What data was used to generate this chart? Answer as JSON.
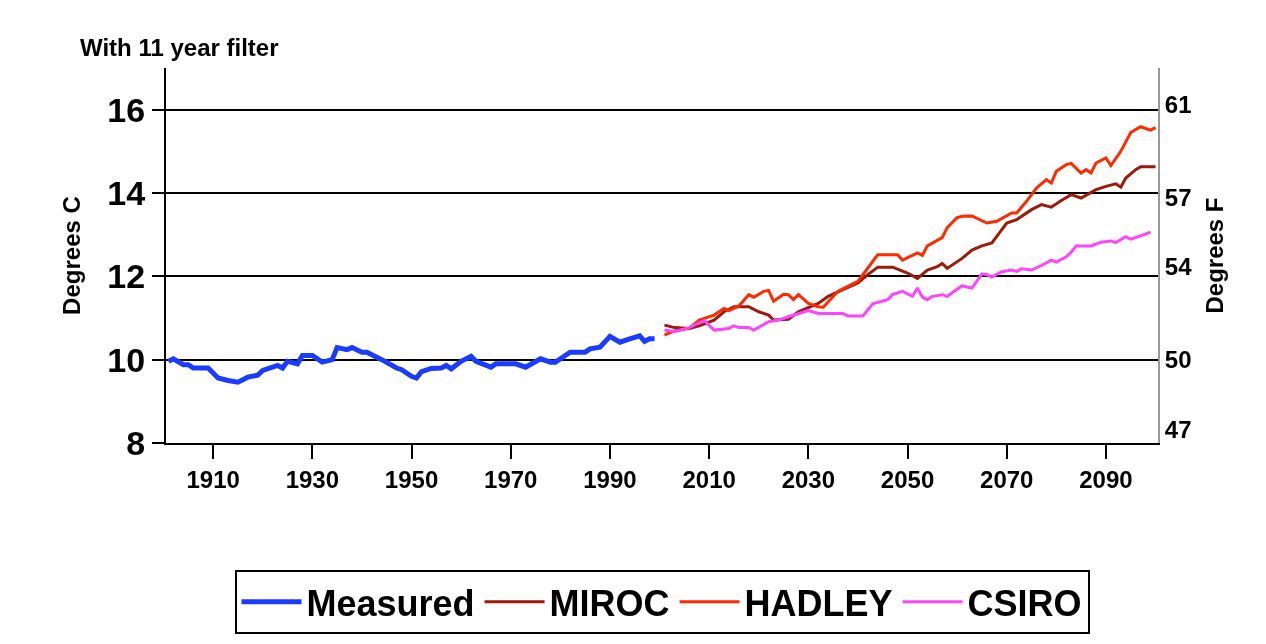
{
  "chart_data": {
    "type": "line",
    "title": "With 11 year filter",
    "ylabel": "Degrees C",
    "y2label": "Degrees F",
    "xlim": [
      1900.5,
      2100.5
    ],
    "xticks": [
      1910,
      1930,
      1950,
      1970,
      1990,
      2010,
      2030,
      2050,
      2070,
      2090
    ],
    "ylim": [
      8,
      17
    ],
    "yticks": [
      8,
      10,
      12,
      14,
      16
    ],
    "y2lim": [
      46.4,
      62.6
    ],
    "y2ticks": [
      47,
      50,
      54,
      57,
      61
    ],
    "grid": "y",
    "legend": "bottom",
    "marker": "none",
    "line_style": "solid",
    "series": [
      {
        "name": "Measured",
        "color": "#1a3cff",
        "x": [
          1901,
          1902,
          1904,
          1905,
          1906,
          1909,
          1911,
          1913,
          1915,
          1917,
          1919,
          1920,
          1923,
          1924,
          1925,
          1927,
          1928,
          1930,
          1932,
          1934,
          1935,
          1937,
          1938,
          1940,
          1941,
          1944,
          1947,
          1948,
          1950,
          1951,
          1952,
          1954,
          1956,
          1957,
          1958,
          1960,
          1962,
          1963,
          1966,
          1967,
          1971,
          1973,
          1976,
          1978,
          1979,
          1981,
          1982,
          1985,
          1986,
          1988,
          1990,
          1992,
          1994,
          1996,
          1997,
          1998,
          1999
        ],
        "values": [
          9.96,
          10.02,
          9.88,
          9.88,
          9.8,
          9.8,
          9.56,
          9.5,
          9.46,
          9.58,
          9.63,
          9.74,
          9.86,
          9.8,
          9.96,
          9.9,
          10.1,
          10.1,
          9.94,
          10.0,
          10.29,
          10.24,
          10.29,
          10.18,
          10.18,
          10.0,
          9.8,
          9.76,
          9.6,
          9.56,
          9.71,
          9.79,
          9.8,
          9.86,
          9.78,
          9.96,
          10.08,
          9.96,
          9.82,
          9.9,
          9.9,
          9.82,
          10.02,
          9.94,
          9.94,
          10.1,
          10.18,
          10.18,
          10.26,
          10.3,
          10.56,
          10.42,
          10.5,
          10.57,
          10.44,
          10.5,
          10.5
        ]
      },
      {
        "name": "MIROC",
        "color": "#9b1a0a",
        "x": [
          2001,
          2003,
          2006,
          2008,
          2011,
          2013,
          2015,
          2018,
          2020,
          2022,
          2023,
          2026,
          2028,
          2032,
          2034,
          2037,
          2040,
          2042,
          2044,
          2047,
          2050,
          2052,
          2054,
          2056,
          2057,
          2058,
          2061,
          2063,
          2065,
          2067,
          2068,
          2070,
          2072,
          2075,
          2077,
          2079,
          2081,
          2083,
          2085,
          2088,
          2090,
          2092,
          2093,
          2094,
          2096,
          2097,
          2100
        ],
        "values": [
          10.83,
          10.77,
          10.75,
          10.81,
          10.95,
          11.15,
          11.27,
          11.27,
          11.15,
          11.07,
          10.95,
          10.97,
          11.15,
          11.35,
          11.52,
          11.68,
          11.84,
          12.04,
          12.22,
          12.22,
          12.08,
          11.95,
          12.15,
          12.23,
          12.31,
          12.19,
          12.43,
          12.63,
          12.73,
          12.8,
          12.96,
          13.28,
          13.36,
          13.6,
          13.72,
          13.66,
          13.82,
          13.96,
          13.88,
          14.08,
          14.16,
          14.22,
          14.14,
          14.36,
          14.56,
          14.63,
          14.63
        ]
      },
      {
        "name": "HADLEY",
        "color": "#ff2a00",
        "x": [
          2001,
          2003,
          2006,
          2008,
          2011,
          2013,
          2014,
          2016,
          2018,
          2019,
          2021,
          2022,
          2023,
          2025,
          2026,
          2027,
          2028,
          2030,
          2032,
          2033,
          2036,
          2040,
          2042,
          2044,
          2046,
          2048,
          2049,
          2052,
          2053,
          2054,
          2057,
          2058,
          2060,
          2061,
          2063,
          2066,
          2068,
          2071,
          2072,
          2074,
          2076,
          2078,
          2079,
          2080,
          2082,
          2083,
          2085,
          2086,
          2087,
          2088,
          2090,
          2091,
          2093,
          2095,
          2097,
          2099,
          2100
        ],
        "values": [
          10.59,
          10.69,
          10.75,
          10.95,
          11.07,
          11.23,
          11.18,
          11.29,
          11.56,
          11.5,
          11.64,
          11.66,
          11.4,
          11.57,
          11.56,
          11.44,
          11.56,
          11.35,
          11.27,
          11.26,
          11.64,
          11.88,
          12.2,
          12.52,
          12.52,
          12.52,
          12.39,
          12.56,
          12.5,
          12.73,
          12.93,
          13.17,
          13.41,
          13.44,
          13.45,
          13.28,
          13.32,
          13.52,
          13.52,
          13.8,
          14.12,
          14.32,
          14.24,
          14.52,
          14.68,
          14.71,
          14.48,
          14.56,
          14.48,
          14.72,
          14.84,
          14.66,
          15.0,
          15.45,
          15.59,
          15.51,
          15.57
        ]
      },
      {
        "name": "CSIRO",
        "color": "#ff44ff",
        "x": [
          2001,
          2003,
          2006,
          2009,
          2011,
          2014,
          2015,
          2016,
          2018,
          2019,
          2022,
          2024,
          2026,
          2030,
          2032,
          2034,
          2037,
          2038,
          2041,
          2043,
          2046,
          2047,
          2049,
          2051,
          2052,
          2053,
          2054,
          2055,
          2057,
          2058,
          2060,
          2061,
          2063,
          2065,
          2066,
          2067,
          2069,
          2071,
          2072,
          2073,
          2075,
          2077,
          2079,
          2080,
          2082,
          2083,
          2084,
          2087,
          2089,
          2091,
          2092,
          2094,
          2095,
          2097,
          2099
        ],
        "values": [
          10.71,
          10.67,
          10.77,
          10.94,
          10.71,
          10.75,
          10.81,
          10.77,
          10.77,
          10.71,
          10.91,
          10.95,
          11.03,
          11.18,
          11.11,
          11.11,
          11.11,
          11.05,
          11.05,
          11.34,
          11.44,
          11.56,
          11.64,
          11.52,
          11.72,
          11.5,
          11.44,
          11.52,
          11.56,
          11.52,
          11.69,
          11.77,
          11.72,
          12.06,
          12.04,
          11.98,
          12.11,
          12.15,
          12.12,
          12.18,
          12.15,
          12.26,
          12.39,
          12.34,
          12.47,
          12.58,
          12.73,
          12.73,
          12.82,
          12.85,
          12.81,
          12.95,
          12.89,
          12.97,
          13.06
        ]
      }
    ]
  }
}
